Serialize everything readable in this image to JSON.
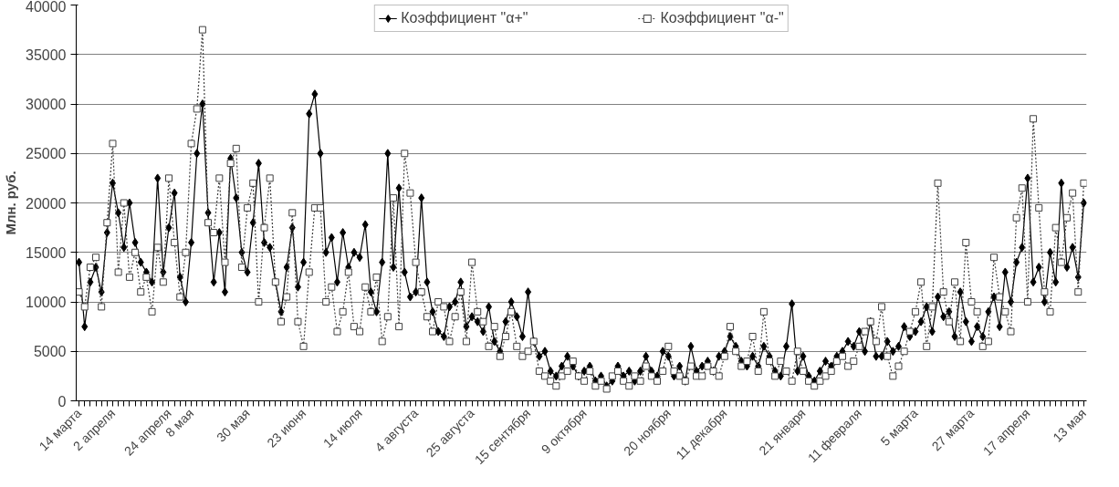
{
  "chart_data": {
    "type": "line",
    "ylabel": "Млн. руб.",
    "categories": [
      "14 марта",
      null,
      null,
      null,
      null,
      null,
      "2 апреля",
      null,
      null,
      null,
      null,
      null,
      null,
      null,
      null,
      null,
      "24 апреля",
      null,
      null,
      null,
      "8 мая",
      null,
      null,
      null,
      null,
      null,
      null,
      null,
      null,
      null,
      "30 мая",
      null,
      null,
      null,
      null,
      null,
      null,
      null,
      null,
      null,
      "23 июня",
      null,
      null,
      null,
      null,
      null,
      null,
      null,
      null,
      null,
      "14 июля",
      null,
      null,
      null,
      null,
      null,
      null,
      null,
      null,
      null,
      "4 августа",
      null,
      null,
      null,
      null,
      null,
      null,
      null,
      null,
      null,
      "25 августа",
      null,
      null,
      null,
      null,
      null,
      null,
      null,
      null,
      null,
      "15 сентября",
      null,
      null,
      null,
      null,
      null,
      null,
      null,
      null,
      null,
      "9 октября",
      null,
      null,
      null,
      null,
      null,
      null,
      null,
      null,
      null,
      null,
      null,
      null,
      null,
      null,
      "20 ноября",
      null,
      null,
      null,
      null,
      null,
      null,
      null,
      null,
      null,
      "11 декабря",
      null,
      null,
      null,
      null,
      null,
      null,
      null,
      null,
      null,
      null,
      null,
      null,
      null,
      "21 января",
      null,
      null,
      null,
      null,
      null,
      null,
      null,
      null,
      null,
      "11 февраля",
      null,
      null,
      null,
      null,
      null,
      null,
      null,
      null,
      null,
      "5 марта",
      null,
      null,
      null,
      null,
      null,
      null,
      null,
      null,
      null,
      "27 марта",
      null,
      null,
      null,
      null,
      null,
      null,
      null,
      null,
      null,
      "17 апреля",
      null,
      null,
      null,
      null,
      null,
      null,
      null,
      null,
      null,
      "13 мая"
    ],
    "series": [
      {
        "name": "Коэффициент \"α+\"",
        "color": "#000000",
        "marker": "diamond",
        "line_style": "solid",
        "values": [
          14000,
          7500,
          12000,
          13500,
          11000,
          17000,
          22000,
          19000,
          15500,
          20000,
          16000,
          14000,
          13000,
          12000,
          22500,
          13000,
          17500,
          21000,
          12500,
          10000,
          16000,
          25000,
          30000,
          19000,
          12000,
          17000,
          11000,
          24500,
          20500,
          15000,
          13000,
          18000,
          24000,
          16000,
          15500,
          12000,
          9000,
          13500,
          17500,
          11500,
          14000,
          29000,
          31000,
          25000,
          15000,
          16500,
          12000,
          17000,
          13500,
          15000,
          14500,
          17800,
          11000,
          9000,
          14000,
          25000,
          13500,
          21500,
          13000,
          10500,
          11000,
          20500,
          12000,
          9000,
          7000,
          6500,
          9500,
          10000,
          12000,
          7500,
          8500,
          8000,
          7000,
          9500,
          6000,
          5000,
          8000,
          10000,
          8500,
          6500,
          11000,
          6000,
          4500,
          5000,
          3000,
          2500,
          3500,
          4500,
          3500,
          2500,
          3000,
          3500,
          2000,
          2500,
          1500,
          2000,
          3500,
          2500,
          3000,
          2000,
          3000,
          4500,
          3000,
          2500,
          5000,
          4500,
          2500,
          3500,
          2000,
          5500,
          3000,
          3500,
          4000,
          3000,
          4500,
          5000,
          6500,
          5500,
          4000,
          3500,
          4500,
          3500,
          5500,
          4500,
          3000,
          2500,
          5500,
          9800,
          3000,
          4500,
          2500,
          2000,
          3000,
          4000,
          3500,
          4500,
          5000,
          6000,
          5500,
          7000,
          5000,
          8000,
          4500,
          4500,
          6000,
          5000,
          5500,
          7500,
          6500,
          7000,
          8000,
          9500,
          7000,
          10500,
          8500,
          9000,
          6500,
          11000,
          8000,
          6000,
          7500,
          6500,
          9000,
          10500,
          7500,
          13000,
          10000,
          14000,
          15500,
          22500,
          12000,
          13500,
          10000,
          15000,
          12000,
          22000,
          13500,
          15500,
          12500,
          20000
        ]
      },
      {
        "name": "Коэффициент \"α-\"",
        "color": "#404040",
        "marker": "square",
        "line_style": "dotted",
        "values": [
          11000,
          9500,
          13500,
          14500,
          9500,
          18000,
          26000,
          13000,
          20000,
          12500,
          15000,
          11000,
          12500,
          9000,
          15500,
          12000,
          22500,
          16000,
          10500,
          15000,
          26000,
          29500,
          37500,
          18000,
          17000,
          22500,
          14000,
          24000,
          25500,
          13500,
          19500,
          22000,
          10000,
          17500,
          22500,
          12000,
          8000,
          10500,
          19000,
          8000,
          5500,
          13000,
          19500,
          19500,
          10000,
          11500,
          7000,
          9000,
          13000,
          7500,
          7000,
          11500,
          9000,
          12500,
          6000,
          8500,
          20500,
          7500,
          25000,
          21000,
          14000,
          11000,
          8500,
          7000,
          10000,
          9500,
          6000,
          8500,
          11000,
          6000,
          14000,
          9000,
          8000,
          5500,
          7500,
          4500,
          6500,
          9000,
          5500,
          4500,
          5000,
          6000,
          3000,
          2500,
          2000,
          1500,
          2500,
          3000,
          4000,
          2500,
          2000,
          3000,
          1500,
          2000,
          1200,
          2500,
          3000,
          2000,
          1500,
          2500,
          2000,
          3500,
          2500,
          2000,
          3000,
          5500,
          3000,
          2500,
          2000,
          3500,
          2500,
          2500,
          3500,
          3000,
          2500,
          4500,
          7500,
          5000,
          3500,
          4000,
          6500,
          3000,
          9000,
          4000,
          2500,
          4000,
          3000,
          2000,
          5000,
          3000,
          2000,
          1500,
          2000,
          2500,
          3000,
          4000,
          4500,
          3500,
          4000,
          5500,
          7000,
          8000,
          6000,
          9500,
          4500,
          2500,
          3500,
          5000,
          7000,
          9000,
          12000,
          5500,
          9500,
          22000,
          11000,
          8000,
          12000,
          6000,
          16000,
          10000,
          9000,
          5500,
          6000,
          14500,
          10500,
          9000,
          7000,
          18500,
          21500,
          10000,
          28500,
          19500,
          11000,
          9000,
          17500,
          14000,
          18500,
          21000,
          11000,
          22000
        ]
      }
    ],
    "ylim": [
      0,
      40000
    ],
    "yticks": [
      0,
      5000,
      10000,
      15000,
      20000,
      25000,
      30000,
      35000,
      40000
    ],
    "grid": "y",
    "legend": "top"
  }
}
